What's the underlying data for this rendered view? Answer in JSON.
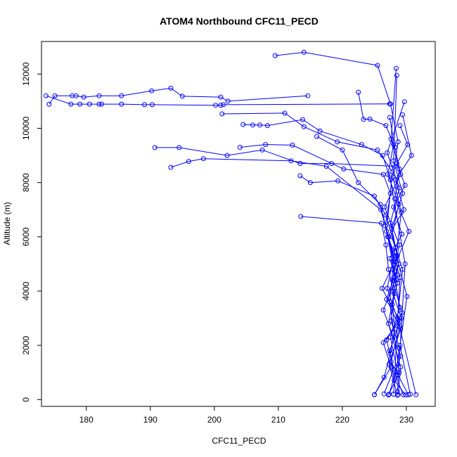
{
  "chart_data": {
    "type": "line",
    "title": "ATOM4 Northbound CFC11_PECD",
    "xlabel": "CFC11_PECD",
    "ylabel": "Altitude (m)",
    "xlim": [
      173,
      234.5
    ],
    "ylim": [
      -250,
      13200
    ],
    "x_ticks": [
      180,
      190,
      200,
      210,
      220,
      230
    ],
    "y_ticks": [
      0,
      2000,
      4000,
      6000,
      8000,
      10000,
      12000
    ],
    "x_tick_labels": [
      "180",
      "190",
      "200",
      "210",
      "220",
      "230"
    ],
    "y_tick_labels": [
      "0",
      "2000",
      "4000",
      "6000",
      "8000",
      "10000",
      "12000"
    ],
    "colors": {
      "series": "#0000ff",
      "axes": "#000000"
    },
    "series": [
      {
        "x": [
          225.0,
          226.5,
          227.5,
          228.2,
          227.8,
          228.6,
          227.4,
          229.3,
          228.0,
          229.8,
          228.5,
          230.2,
          229.0
        ],
        "y": [
          180,
          820,
          1700,
          2600,
          3500,
          4300,
          5200,
          6100,
          7100,
          7900,
          8700,
          9400,
          10100
        ]
      },
      {
        "x": [
          229.5,
          228.3,
          228.9,
          227.6,
          228.1,
          227.2,
          226.8,
          226.1,
          213.5
        ],
        "y": [
          180,
          900,
          1900,
          2900,
          3900,
          4800,
          5700,
          6500,
          6750
        ]
      },
      {
        "x": [
          174.2,
          175.1,
          177.8,
          178.4,
          179.6,
          182.0,
          185.5,
          190.2,
          193.2,
          195.0,
          201.0,
          202.1,
          214.6
        ],
        "y": [
          10890,
          11200,
          11200,
          11200,
          11150,
          11200,
          11200,
          11380,
          11480,
          11180,
          11150,
          11000,
          11200
        ]
      },
      {
        "x": [
          173.7,
          177.6,
          179.0,
          180.5,
          182.0,
          182.4,
          185.5,
          189.1,
          190.3,
          200.2,
          201.0,
          201.4,
          227.4
        ],
        "y": [
          11200,
          10890,
          10890,
          10890,
          10890,
          10890,
          10890,
          10870,
          10870,
          10850,
          10850,
          10870,
          10900
        ]
      },
      {
        "x": [
          190.7,
          194.5,
          202.0,
          207.5,
          213.4,
          218.3,
          228.2
        ],
        "y": [
          9290,
          9290,
          9000,
          9200,
          8700,
          8700,
          8600
        ]
      },
      {
        "x": [
          193.2,
          196.0,
          198.3,
          212.0,
          217.5,
          226.0,
          229.0,
          228.0
        ],
        "y": [
          8560,
          8780,
          8880,
          8800,
          8600,
          7000,
          4500,
          200
        ]
      },
      {
        "x": [
          209.5,
          214.0,
          225.5,
          227.5,
          228.7,
          227.9,
          229.2,
          228.4,
          230.1,
          229.0,
          230.6
        ],
        "y": [
          12680,
          12800,
          12320,
          10900,
          9500,
          8200,
          6900,
          5300,
          3800,
          2000,
          200
        ]
      },
      {
        "x": [
          222.5,
          223.3,
          224.3,
          226.8,
          228.0,
          227.1,
          228.8,
          227.7,
          229.4,
          228.6,
          231.5
        ],
        "y": [
          11330,
          10330,
          10340,
          10100,
          9400,
          8300,
          7200,
          6000,
          4800,
          3000,
          180
        ]
      },
      {
        "x": [
          204.5,
          206.0,
          207.1,
          208.3,
          213.8,
          216.5,
          223.0,
          226.3,
          227.5,
          229.8,
          228.6
        ],
        "y": [
          10140,
          10120,
          10120,
          10100,
          10320,
          9900,
          9400,
          9000,
          8100,
          5000,
          300
        ]
      },
      {
        "x": [
          201.2,
          211.0,
          214.0,
          219.2,
          225.5,
          227.8,
          226.9,
          228.4,
          227.2,
          229.1,
          228.7
        ],
        "y": [
          10530,
          10560,
          10060,
          9500,
          9200,
          8400,
          6200,
          4400,
          2800,
          1200,
          180
        ]
      },
      {
        "x": [
          204.0,
          208.0,
          212.2,
          220.2,
          226.4,
          227.5,
          226.7,
          228.0,
          227.4,
          228.9
        ],
        "y": [
          9300,
          9400,
          9380,
          8500,
          8300,
          7600,
          6400,
          5100,
          3600,
          1000
        ]
      },
      {
        "x": [
          213.4,
          215.0,
          219.3,
          225.0,
          226.8,
          228.3,
          227.0,
          229.0,
          227.6,
          230.3
        ],
        "y": [
          8250,
          8000,
          8060,
          7500,
          6800,
          5600,
          4100,
          2700,
          1400,
          180
        ]
      },
      {
        "x": [
          216.0,
          220.0,
          222.5,
          225.9,
          227.2,
          228.6,
          226.4,
          229.1,
          227.3
        ],
        "y": [
          9700,
          9200,
          8000,
          7200,
          6000,
          4600,
          3300,
          1600,
          200
        ]
      },
      {
        "x": [
          225.0,
          227.6,
          226.4,
          229.2,
          227.8,
          228.8,
          227.1,
          229.6,
          228.3,
          230.8,
          229.4
        ],
        "y": [
          180,
          1200,
          2100,
          3000,
          4000,
          5000,
          6000,
          7000,
          8100,
          9000,
          10500
        ]
      },
      {
        "x": [
          227.2,
          228.7,
          227.5,
          229.0,
          227.9,
          230.4,
          228.2,
          228.9,
          227.6,
          228.4
        ],
        "y": [
          170,
          900,
          2300,
          3400,
          4800,
          6200,
          7400,
          8500,
          9600,
          12210
        ]
      },
      {
        "x": [
          228.6,
          227.3,
          229.1,
          226.9,
          228.8,
          227.7,
          229.4,
          228.0,
          228.5
        ],
        "y": [
          160,
          1300,
          2600,
          3700,
          5000,
          6300,
          7600,
          8800,
          11950
        ]
      },
      {
        "x": [
          229.9,
          228.1,
          227.4,
          229.0,
          226.2,
          228.6,
          227.5,
          228.9,
          227.0,
          229.7
        ],
        "y": [
          170,
          700,
          1800,
          2900,
          4100,
          5300,
          6500,
          7800,
          9100,
          10980
        ]
      },
      {
        "x": [
          226.5,
          228.0,
          226.9,
          229.3,
          227.8,
          228.9,
          226.6,
          229.1,
          228.2,
          227.4
        ],
        "y": [
          210,
          1100,
          2200,
          3200,
          4400,
          5700,
          7100,
          8300,
          9300,
          10400
        ]
      }
    ]
  }
}
